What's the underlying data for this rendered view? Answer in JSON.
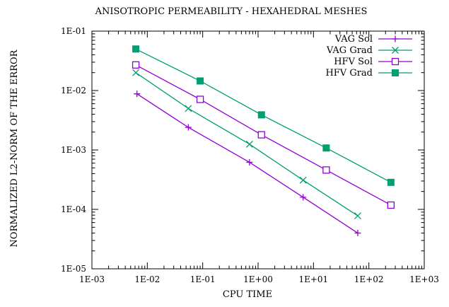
{
  "chart_data": {
    "type": "line",
    "title": "ANISOTROPIC PERMEABILITY - HEXAHEDRAL MESHES",
    "xlabel": "CPU TIME",
    "ylabel": "NORMALIZED L2-NORM OF THE ERROR",
    "xscale": "log",
    "yscale": "log",
    "xlim": [
      0.001,
      1000
    ],
    "ylim": [
      1e-05,
      0.1
    ],
    "x_ticks": [
      0.001,
      0.01,
      0.1,
      1,
      10,
      100,
      1000
    ],
    "x_tick_labels": [
      "1E-03",
      "1E-02",
      "1E-01",
      "1E+00",
      "1E+01",
      "1E+02",
      "1E+03"
    ],
    "y_ticks": [
      1e-05,
      0.0001,
      0.001,
      0.01,
      0.1
    ],
    "y_tick_labels": [
      "1E-05",
      "1E-04",
      "1E-03",
      "1E-02",
      "1E-01"
    ],
    "grid": false,
    "legend_position": "top-right",
    "series": [
      {
        "name": "VAG Sol",
        "color": "#9400d3",
        "marker": "plus",
        "x": [
          0.0065,
          0.055,
          0.7,
          6.5,
          63
        ],
        "y": [
          0.0088,
          0.0024,
          0.00062,
          0.00016,
          4e-05
        ]
      },
      {
        "name": "VAG Grad",
        "color": "#009e73",
        "marker": "cross",
        "x": [
          0.0062,
          0.055,
          0.7,
          6.5,
          63
        ],
        "y": [
          0.02,
          0.005,
          0.00125,
          0.00031,
          7.8e-05
        ]
      },
      {
        "name": "HFV Sol",
        "color": "#9400d3",
        "marker": "open-square",
        "x": [
          0.0062,
          0.09,
          1.15,
          17,
          250
        ],
        "y": [
          0.027,
          0.0071,
          0.0018,
          0.00046,
          0.000118
        ]
      },
      {
        "name": "HFV Grad",
        "color": "#009e73",
        "marker": "filled-square",
        "x": [
          0.0062,
          0.09,
          1.15,
          17,
          250
        ],
        "y": [
          0.05,
          0.0145,
          0.0039,
          0.00108,
          0.000285
        ]
      }
    ]
  }
}
